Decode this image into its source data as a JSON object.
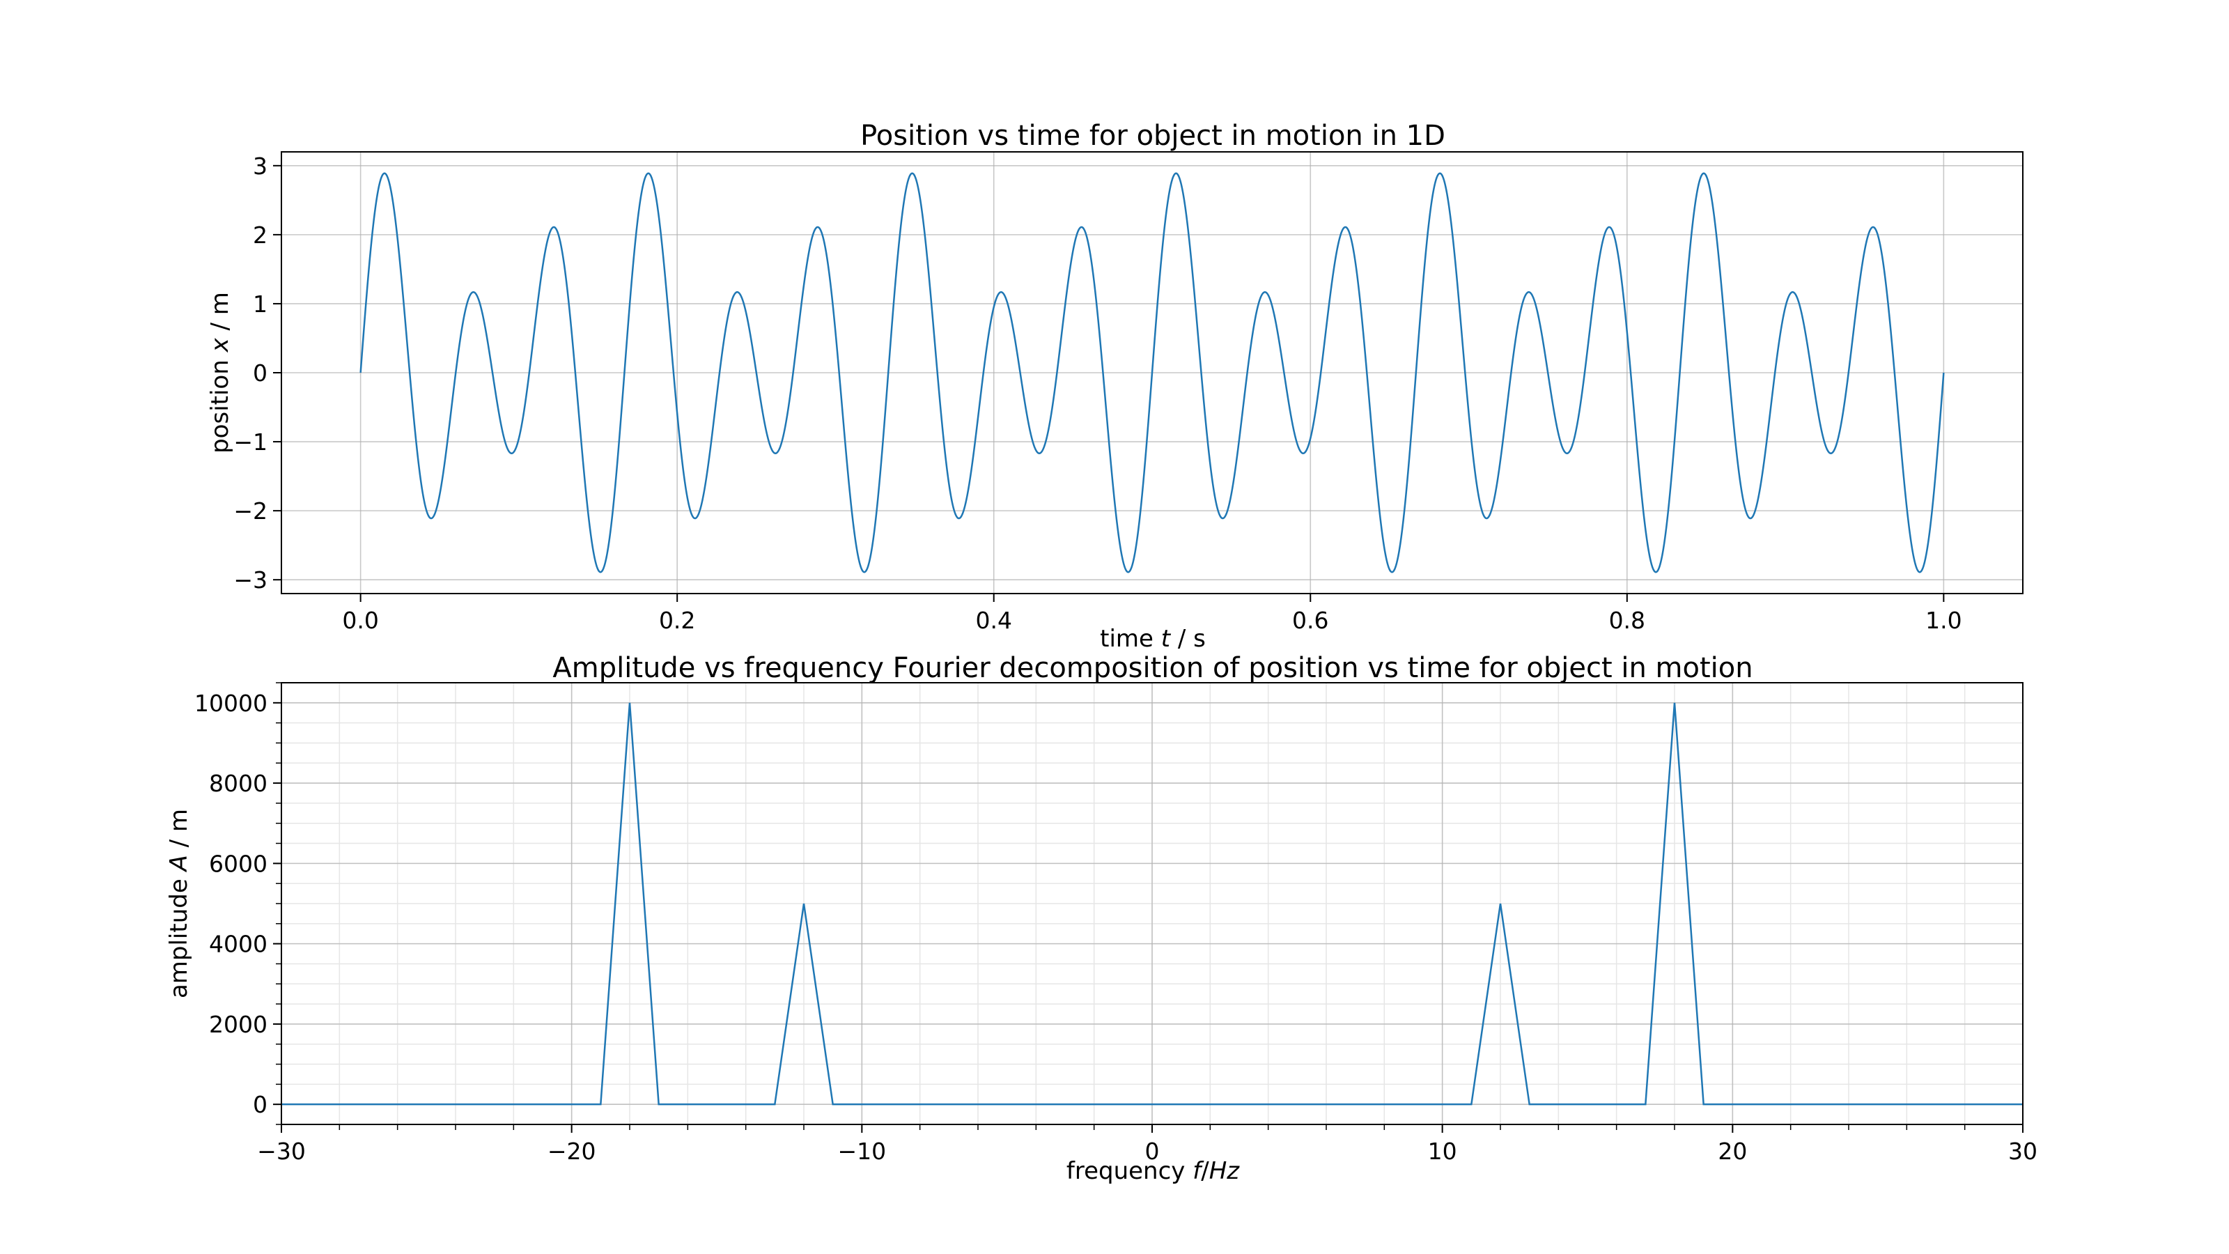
{
  "chart_data": [
    {
      "type": "line",
      "title": "Position vs time for object in motion in 1D",
      "xlabel_parts": [
        "time ",
        "t",
        " / s"
      ],
      "ylabel_parts": [
        "position ",
        "x",
        " / m"
      ],
      "xlim": [
        -0.05,
        1.05
      ],
      "ylim": [
        -3.2,
        3.2
      ],
      "x_ticks": [
        0.0,
        0.2,
        0.4,
        0.6,
        0.8,
        1.0
      ],
      "x_tick_labels": [
        "0.0",
        "0.2",
        "0.4",
        "0.6",
        "0.8",
        "1.0"
      ],
      "y_ticks": [
        -3,
        -2,
        -1,
        0,
        1,
        2,
        3
      ],
      "y_tick_labels": [
        "−3",
        "−2",
        "−1",
        "0",
        "1",
        "2",
        "3"
      ],
      "grid": true,
      "series": [
        {
          "color": "#1f77b4",
          "x_range": [
            0,
            1
          ],
          "components": [
            {
              "amplitude": 2,
              "frequency_hz": 18
            },
            {
              "amplitude": 1,
              "frequency_hz": 12
            }
          ]
        }
      ]
    },
    {
      "type": "line",
      "title": "Amplitude vs frequency Fourier decomposition of position vs time for object in motion",
      "xlabel_parts": [
        "frequency ",
        "f",
        "/",
        "Hz"
      ],
      "ylabel_parts": [
        "amplitude ",
        "A",
        " / m"
      ],
      "xlim": [
        -30,
        30
      ],
      "ylim": [
        -500,
        10500
      ],
      "x_ticks": [
        -30,
        -20,
        -10,
        0,
        10,
        20,
        30
      ],
      "x_tick_labels": [
        "−30",
        "−20",
        "−10",
        "0",
        "10",
        "20",
        "30"
      ],
      "y_ticks": [
        0,
        2000,
        4000,
        6000,
        8000,
        10000
      ],
      "y_tick_labels": [
        "0",
        "2000",
        "4000",
        "6000",
        "8000",
        "10000"
      ],
      "grid": true,
      "minor_grid": true,
      "series": [
        {
          "color": "#1f77b4",
          "x": [
            -30,
            -19,
            -18,
            -17,
            -13,
            -12,
            -11,
            11,
            12,
            13,
            17,
            18,
            19,
            30
          ],
          "y": [
            0,
            0,
            10000,
            0,
            0,
            5000,
            0,
            0,
            5000,
            0,
            0,
            10000,
            0,
            0
          ]
        }
      ]
    }
  ]
}
